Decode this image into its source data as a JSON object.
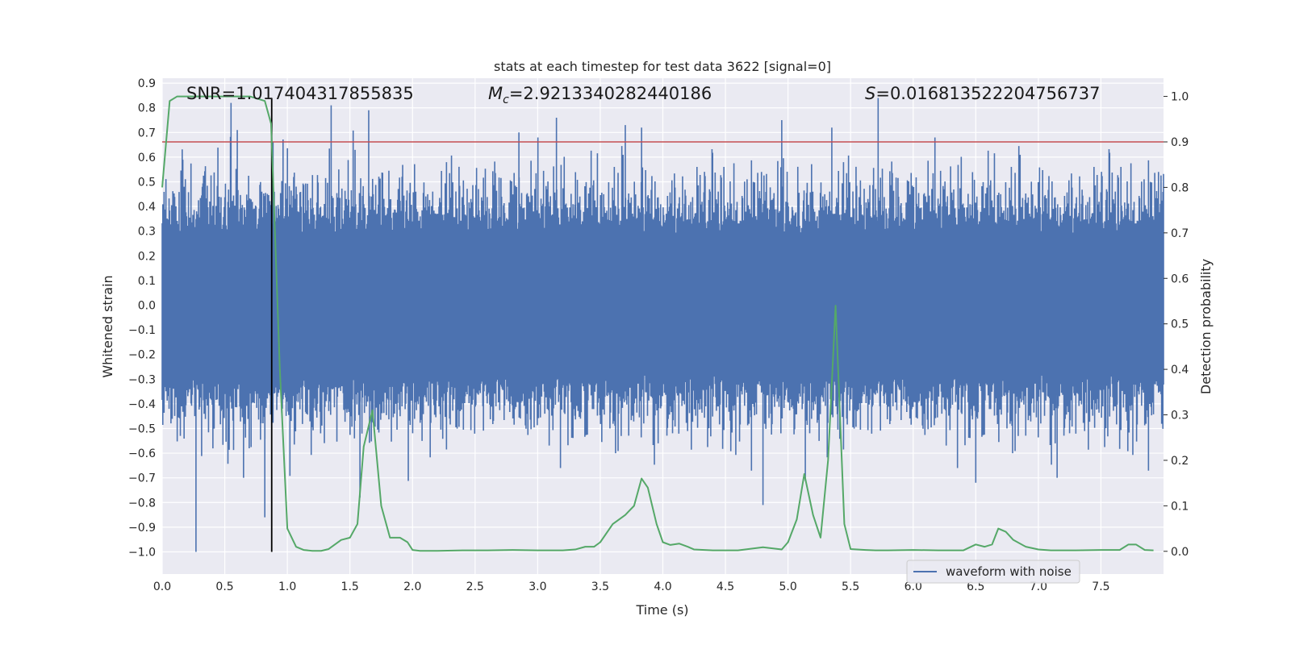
{
  "chart_data": {
    "type": "line",
    "title": "stats at each timestep for test data 3622 [signal=0]",
    "xlabel": "Time (s)",
    "ylabel": "Whitened strain",
    "y2label": "Detection probability",
    "xlim": [
      0.0,
      8.0
    ],
    "ylim": [
      -1.09,
      0.92
    ],
    "y2lim": [
      -0.05,
      1.04
    ],
    "x_ticks": [
      "0.0",
      "0.5",
      "1.0",
      "1.5",
      "2.0",
      "2.5",
      "3.0",
      "3.5",
      "4.0",
      "4.5",
      "5.0",
      "5.5",
      "6.0",
      "6.5",
      "7.0",
      "7.5"
    ],
    "y_ticks": [
      "0.9",
      "0.8",
      "0.7",
      "0.6",
      "0.5",
      "0.4",
      "0.3",
      "0.2",
      "0.1",
      "0.0",
      "-0.1",
      "-0.2",
      "-0.3",
      "-0.4",
      "-0.5",
      "-0.6",
      "-0.7",
      "-0.8",
      "-0.9",
      "-1.0"
    ],
    "y2_ticks": [
      "1.0",
      "0.9",
      "0.8",
      "0.7",
      "0.6",
      "0.5",
      "0.4",
      "0.3",
      "0.2",
      "0.1",
      "0.0"
    ],
    "annotations": {
      "snr": "SNR=1.017404317855835",
      "mc_symbol": "M",
      "mc_sub": "c",
      "mc_value": "=2.9213340282440186",
      "s_symbol": "S",
      "s_value": "=0.016813522204756737"
    },
    "legend": {
      "label": "waveform with noise",
      "location": "lower-right"
    },
    "threshold": {
      "value": 0.9,
      "axis": "y2",
      "color": "#c44e52"
    },
    "vertical_marker": {
      "x": 0.875,
      "y_range": [
        -1.0,
        0.84
      ],
      "color": "#000000"
    },
    "series": [
      {
        "name": "waveform with noise",
        "axis": "y",
        "color": "#4c72b0",
        "description": "noisy whitened strain, roughly within ±0.45 with spikes",
        "spikes": [
          {
            "x": 0.27,
            "y": -1.0
          },
          {
            "x": 0.55,
            "y": 0.82
          },
          {
            "x": 0.6,
            "y": 0.71
          },
          {
            "x": 0.65,
            "y": -0.7
          },
          {
            "x": 0.82,
            "y": -0.86
          },
          {
            "x": 1.35,
            "y": 0.81
          },
          {
            "x": 1.65,
            "y": 0.79
          },
          {
            "x": 1.58,
            "y": -0.78
          },
          {
            "x": 3.15,
            "y": 0.76
          },
          {
            "x": 3.83,
            "y": 0.72
          },
          {
            "x": 3.7,
            "y": 0.73
          },
          {
            "x": 4.8,
            "y": -0.81
          },
          {
            "x": 4.95,
            "y": 0.75
          },
          {
            "x": 5.72,
            "y": 0.84
          },
          {
            "x": 6.5,
            "y": -0.72
          },
          {
            "x": 7.15,
            "y": -0.7
          },
          {
            "x": 5.35,
            "y": 0.72
          },
          {
            "x": 2.85,
            "y": 0.7
          }
        ]
      },
      {
        "name": "detection probability",
        "axis": "y2",
        "color": "#55a868",
        "x": [
          0.0,
          0.06,
          0.12,
          0.2,
          0.3,
          0.5,
          0.6,
          0.7,
          0.82,
          0.87,
          0.94,
          1.0,
          1.07,
          1.13,
          1.2,
          1.27,
          1.33,
          1.43,
          1.5,
          1.56,
          1.61,
          1.68,
          1.75,
          1.82,
          1.9,
          1.96,
          2.0,
          2.06,
          2.2,
          2.4,
          2.6,
          2.8,
          3.0,
          3.2,
          3.3,
          3.38,
          3.45,
          3.5,
          3.6,
          3.7,
          3.77,
          3.83,
          3.88,
          3.95,
          4.0,
          4.06,
          4.13,
          4.2,
          4.25,
          4.4,
          4.6,
          4.8,
          4.95,
          5.0,
          5.07,
          5.13,
          5.2,
          5.26,
          5.32,
          5.38,
          5.45,
          5.5,
          5.62,
          5.7,
          5.8,
          6.0,
          6.2,
          6.4,
          6.5,
          6.57,
          6.63,
          6.68,
          6.74,
          6.8,
          6.9,
          7.0,
          7.1,
          7.3,
          7.5,
          7.65,
          7.72,
          7.78,
          7.85,
          7.92
        ],
        "y": [
          0.8,
          0.99,
          1.0,
          1.0,
          1.0,
          1.0,
          1.0,
          1.0,
          0.99,
          0.94,
          0.4,
          0.05,
          0.01,
          0.003,
          0.001,
          0.001,
          0.005,
          0.025,
          0.03,
          0.06,
          0.23,
          0.31,
          0.1,
          0.03,
          0.03,
          0.02,
          0.003,
          0.001,
          0.001,
          0.002,
          0.002,
          0.003,
          0.002,
          0.002,
          0.004,
          0.01,
          0.01,
          0.02,
          0.06,
          0.08,
          0.1,
          0.16,
          0.14,
          0.06,
          0.02,
          0.014,
          0.017,
          0.01,
          0.004,
          0.002,
          0.002,
          0.009,
          0.004,
          0.02,
          0.07,
          0.17,
          0.08,
          0.03,
          0.2,
          0.54,
          0.06,
          0.005,
          0.003,
          0.002,
          0.002,
          0.003,
          0.002,
          0.002,
          0.015,
          0.01,
          0.015,
          0.05,
          0.043,
          0.025,
          0.01,
          0.004,
          0.002,
          0.002,
          0.003,
          0.003,
          0.015,
          0.015,
          0.003,
          0.002
        ]
      }
    ]
  }
}
